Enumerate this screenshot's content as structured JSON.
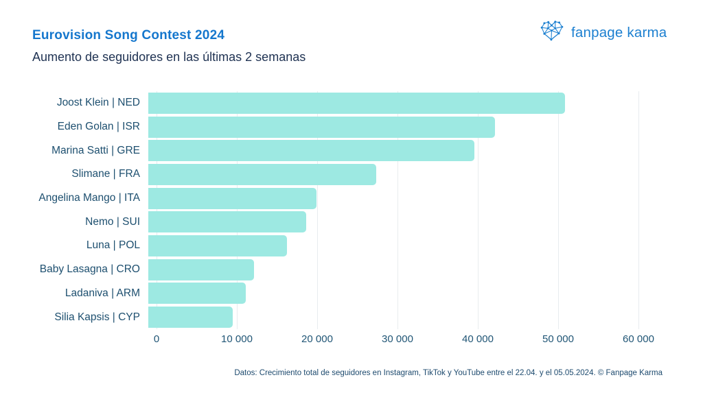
{
  "header": {
    "title": "Eurovision Song Contest 2024",
    "subtitle": "Aumento de seguidores en las últimas 2 semanas"
  },
  "brand": {
    "name": "fanpage karma",
    "logo_icon": "network-heart-icon",
    "logo_color": "#1b7fd0"
  },
  "chart_data": {
    "type": "bar",
    "orientation": "horizontal",
    "title": "Eurovision Song Contest 2024",
    "subtitle": "Aumento de seguidores en las últimas 2 semanas",
    "categories": [
      "Joost Klein | NED",
      "Eden Golan | ISR",
      "Marina Satti | GRE",
      "Slimane | FRA",
      "Angelina Mango | ITA",
      "Nemo | SUI",
      "Luna | POL",
      "Baby Lasagna | CRO",
      "Ladaniva | ARM",
      "Silia Kapsis | CYP"
    ],
    "values": [
      51900,
      43200,
      40600,
      28400,
      20900,
      19700,
      17300,
      13200,
      12100,
      10500
    ],
    "xlabel": "",
    "ylabel": "",
    "xlim": [
      0,
      60000
    ],
    "xticks": [
      0,
      10000,
      20000,
      30000,
      40000,
      50000,
      60000
    ],
    "xtick_labels": [
      "0",
      "10 000",
      "20 000",
      "30 000",
      "40 000",
      "50 000",
      "60 000"
    ],
    "grid": true,
    "legend": false,
    "bar_color": "#9de9e2",
    "gridline_color": "#e8ecef"
  },
  "footer": {
    "caption": "Datos: Crecimiento total de seguidores en Instagram, TikTok y YouTube entre el 22.04. y el 05.05.2024. © Fanpage Karma"
  },
  "colors": {
    "title_blue": "#1577cd",
    "subtitle_navy": "#203353",
    "axis_text": "#1d4f6f",
    "caption_text": "#1d4a6e"
  }
}
